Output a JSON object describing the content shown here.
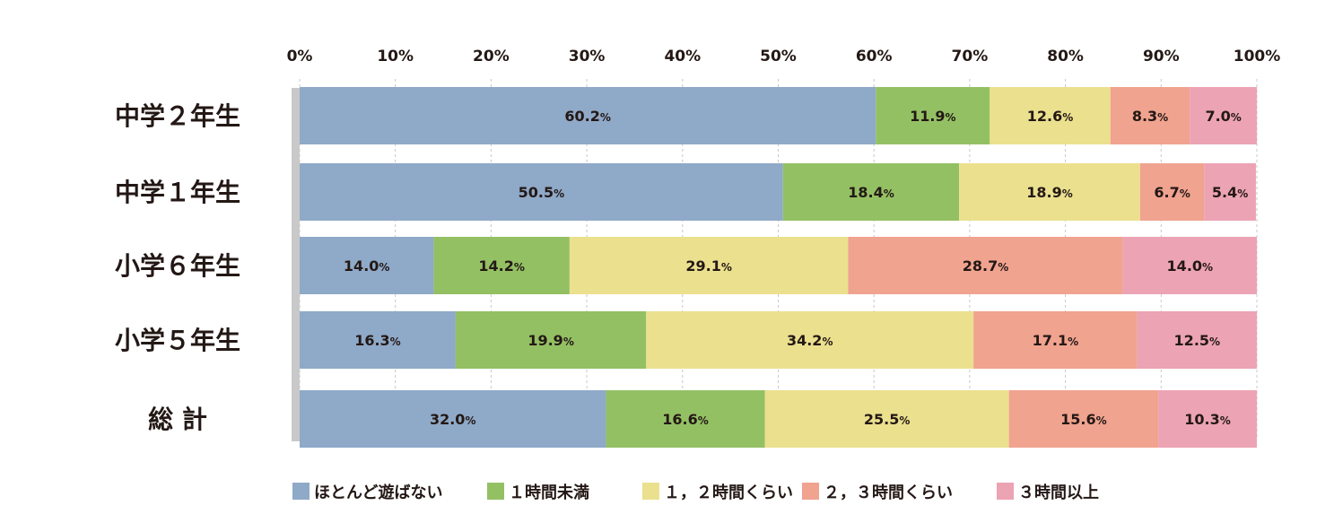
{
  "chart_data": {
    "type": "bar",
    "orientation": "horizontal",
    "stacked": "percent",
    "categories": [
      "中学２年生",
      "中学１年生",
      "小学６年生",
      "小学５年生",
      "総 計"
    ],
    "series": [
      {
        "name": "ほとんど遊ばない",
        "color": "#8fa9c8",
        "values": [
          60.2,
          50.5,
          14.0,
          16.3,
          32.0
        ]
      },
      {
        "name": "１時間未満",
        "color": "#94c064",
        "values": [
          11.9,
          18.4,
          14.2,
          19.9,
          16.6
        ]
      },
      {
        "name": "１，２時間くらい",
        "color": "#ebe08e",
        "values": [
          12.6,
          18.9,
          29.1,
          34.2,
          25.5
        ]
      },
      {
        "name": "２，３時間くらい",
        "color": "#f0a38f",
        "values": [
          8.3,
          6.7,
          28.7,
          17.1,
          15.6
        ]
      },
      {
        "name": "３時間以上",
        "color": "#eca3b4",
        "values": [
          7.0,
          5.4,
          14.0,
          12.5,
          10.3
        ]
      }
    ],
    "value_labels": [
      [
        "60.2",
        "11.9",
        "12.6",
        "8.3",
        "7.0"
      ],
      [
        "50.5",
        "18.4",
        "18.9",
        "6.7",
        "5.4"
      ],
      [
        "14.0",
        "14.2",
        "29.1",
        "28.7",
        "14.0"
      ],
      [
        "16.3",
        "19.9",
        "34.2",
        "17.1",
        "12.5"
      ],
      [
        "32.0",
        "16.6",
        "25.5",
        "15.6",
        "10.3"
      ]
    ],
    "value_suffix": "%",
    "x_ticks": [
      "0%",
      "10%",
      "20%",
      "30%",
      "40%",
      "50%",
      "60%",
      "70%",
      "80%",
      "90%",
      "100%"
    ],
    "xlim": [
      0,
      100
    ],
    "tick_position": "top",
    "grid": true,
    "legend_position": "bottom",
    "axis_line_color": "#c9c9c9",
    "grid_color": "#c8c8c8"
  }
}
